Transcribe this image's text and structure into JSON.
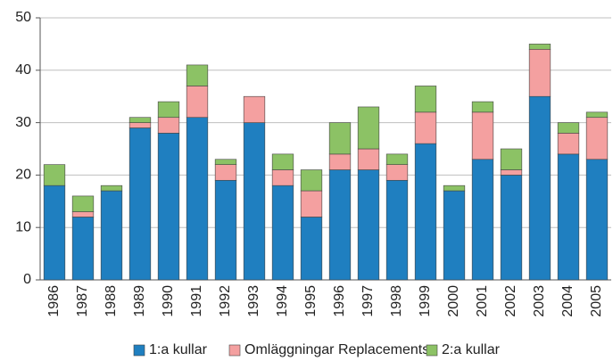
{
  "chart_data": {
    "type": "stacked_bar",
    "categories": [
      "1986",
      "1987",
      "1988",
      "1989",
      "1990",
      "1991",
      "1992",
      "1993",
      "1994",
      "1995",
      "1996",
      "1997",
      "1998",
      "1999",
      "2000",
      "2001",
      "2002",
      "2003",
      "2004",
      "2005"
    ],
    "series": [
      {
        "name": "1:a kullar",
        "color": "#1f7fc0",
        "values": [
          18,
          12,
          17,
          29,
          28,
          31,
          19,
          30,
          18,
          12,
          21,
          21,
          19,
          26,
          17,
          23,
          20,
          35,
          24,
          23
        ]
      },
      {
        "name": "Omläggningar Replacements",
        "color": "#f4a0a0",
        "values": [
          0,
          1,
          0,
          1,
          3,
          6,
          3,
          5,
          3,
          5,
          3,
          4,
          3,
          6,
          0,
          9,
          1,
          9,
          4,
          8
        ]
      },
      {
        "name": "2:a kullar",
        "color": "#8cc265",
        "values": [
          4,
          3,
          1,
          1,
          3,
          4,
          1,
          0,
          3,
          4,
          6,
          8,
          2,
          5,
          1,
          2,
          4,
          1,
          2,
          1
        ]
      }
    ],
    "ylim": [
      0,
      50
    ],
    "yticks": [
      0,
      10,
      20,
      30,
      40,
      50
    ],
    "grid": true,
    "legend": "bottom"
  }
}
